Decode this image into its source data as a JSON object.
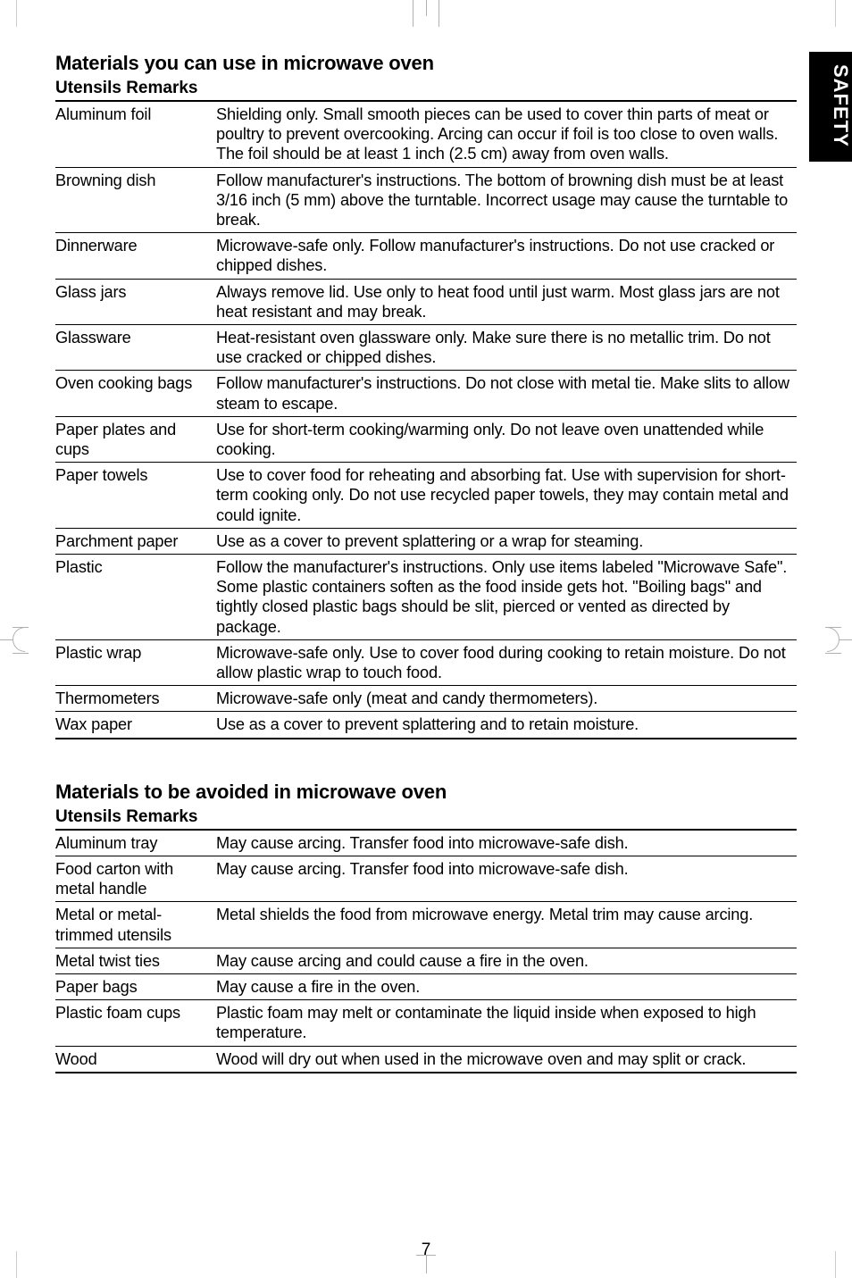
{
  "side_tab": "SAFETY",
  "page_number": "7",
  "section1": {
    "title": "Materials you can use in microwave oven",
    "subhead": "Utensils Remarks",
    "rows": [
      {
        "utensil": "Aluminum foil",
        "remark": "Shielding only. Small smooth pieces can be used to cover thin parts of meat or poultry to prevent overcooking. Arcing can occur if foil is too close to oven walls. The foil should be at least 1 inch (2.5 cm) away from oven walls."
      },
      {
        "utensil": "Browning dish",
        "remark": "Follow manufacturer's instructions. The bottom of browning dish must be at least 3/16 inch (5 mm) above the turntable. Incorrect usage may cause the turntable to break."
      },
      {
        "utensil": "Dinnerware",
        "remark": "Microwave-safe only. Follow manufacturer's instructions. Do not use cracked or chipped dishes."
      },
      {
        "utensil": "Glass jars",
        "remark": "Always remove lid. Use only to heat food until just warm. Most glass jars are not heat resistant and may break."
      },
      {
        "utensil": "Glassware",
        "remark": "Heat-resistant oven glassware only. Make sure there is no metallic trim. Do not use cracked or chipped dishes."
      },
      {
        "utensil": "Oven cooking bags",
        "remark": "Follow manufacturer's instructions. Do not close with metal tie. Make slits to allow steam to escape."
      },
      {
        "utensil": "Paper plates and cups",
        "remark": "Use for short-term cooking/warming only. Do not leave oven unattended while cooking."
      },
      {
        "utensil": "Paper towels",
        "remark": "Use to cover food for reheating and absorbing fat. Use with supervision for short-term cooking only. Do not use recycled paper towels, they may contain metal and could ignite."
      },
      {
        "utensil": "Parchment paper",
        "remark": "Use as a cover to prevent splattering or a wrap for steaming."
      },
      {
        "utensil": "Plastic",
        "remark": "Follow the manufacturer's instructions. Only use items labeled \"Microwave Safe\". Some plastic containers soften as the food inside gets hot. \"Boiling bags\" and tightly closed plastic bags should be slit, pierced or vented as directed by package."
      },
      {
        "utensil": "Plastic wrap",
        "remark": "Microwave-safe only. Use to cover food during cooking to retain moisture. Do not allow plastic wrap to touch food."
      },
      {
        "utensil": "Thermometers",
        "remark": "Microwave-safe only (meat and candy thermometers)."
      },
      {
        "utensil": "Wax paper",
        "remark": "Use as a cover to prevent splattering and to retain moisture."
      }
    ]
  },
  "section2": {
    "title": "Materials to be avoided in microwave oven",
    "subhead": "Utensils Remarks",
    "rows": [
      {
        "utensil": "Aluminum tray",
        "remark": "May cause arcing. Transfer food into microwave-safe dish."
      },
      {
        "utensil": "Food carton with metal handle",
        "remark": "May cause arcing. Transfer food into microwave-safe dish."
      },
      {
        "utensil": "Metal or metal-trimmed utensils",
        "remark": "Metal shields the food from microwave energy. Metal trim may cause arcing."
      },
      {
        "utensil": "Metal twist ties",
        "remark": "May cause arcing and could cause a fire in the oven."
      },
      {
        "utensil": "Paper bags",
        "remark": "May cause a fire in the oven."
      },
      {
        "utensil": "Plastic foam cups",
        "remark": "Plastic foam may melt or contaminate the liquid inside when exposed to high temperature."
      },
      {
        "utensil": "Wood",
        "remark": "Wood will dry out when used in the microwave oven and may split or crack."
      }
    ]
  }
}
